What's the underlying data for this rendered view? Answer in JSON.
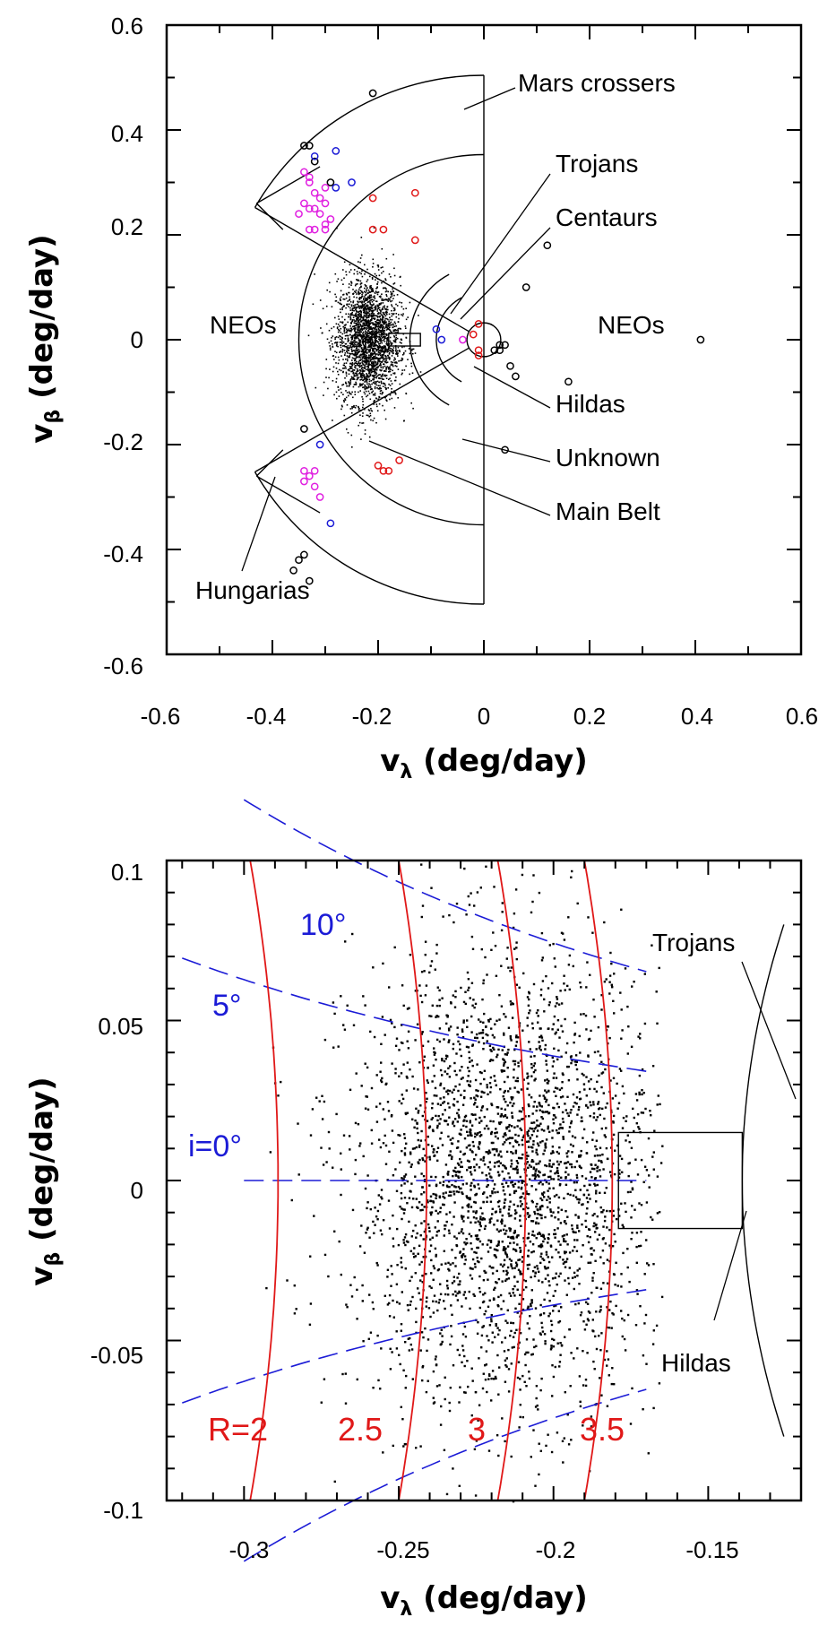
{
  "chart_data": [
    {
      "type": "scatter",
      "xlabel": {
        "main": "v",
        "sub": "λ",
        "rest": " (deg/day)"
      },
      "ylabel": {
        "main": "v",
        "sub": "β",
        "rest": " (deg/day)"
      },
      "xlim": [
        -0.6,
        0.6
      ],
      "ylim": [
        -0.6,
        0.6
      ],
      "xticks": [
        "-0.6",
        "-0.4",
        "-0.2",
        "0",
        "0.2",
        "0.4",
        "0.6"
      ],
      "yticks": [
        "0.6",
        "0.4",
        "0.2",
        "0",
        "-0.2",
        "-0.4",
        "-0.6"
      ],
      "regions": [
        "Mars crossers",
        "Trojans",
        "Centaurs",
        "NEOs",
        "NEOs",
        "Hildas",
        "Unknown",
        "Main Belt",
        "Hungarias"
      ],
      "main_belt_cloud": {
        "center": [
          -0.22,
          0.0
        ],
        "spread": [
          0.03,
          0.06
        ],
        "count": 2500,
        "color": "#000000"
      },
      "series": [
        {
          "color": "#000000",
          "points": [
            [
              -0.21,
              0.47
            ],
            [
              -0.34,
              0.37
            ],
            [
              -0.33,
              0.37
            ],
            [
              -0.32,
              0.34
            ],
            [
              -0.29,
              0.3
            ],
            [
              0.12,
              0.18
            ],
            [
              0.08,
              0.1
            ],
            [
              0.41,
              0.0
            ],
            [
              0.02,
              -0.02
            ],
            [
              0.03,
              -0.02
            ],
            [
              0.04,
              -0.01
            ],
            [
              0.03,
              -0.01
            ],
            [
              0.05,
              -0.05
            ],
            [
              0.06,
              -0.07
            ],
            [
              0.16,
              -0.08
            ],
            [
              0.04,
              -0.21
            ],
            [
              -0.34,
              -0.17
            ],
            [
              -0.35,
              -0.42
            ],
            [
              -0.34,
              -0.41
            ],
            [
              -0.36,
              -0.44
            ],
            [
              -0.33,
              -0.46
            ]
          ]
        },
        {
          "color": "#1b1bd6",
          "points": [
            [
              -0.28,
              0.36
            ],
            [
              -0.32,
              0.35
            ],
            [
              -0.25,
              0.3
            ],
            [
              -0.28,
              0.29
            ],
            [
              -0.09,
              0.02
            ],
            [
              -0.08,
              0.0
            ],
            [
              -0.31,
              -0.2
            ],
            [
              -0.29,
              -0.35
            ]
          ]
        },
        {
          "color": "#e01818",
          "points": [
            [
              -0.21,
              0.27
            ],
            [
              -0.13,
              0.28
            ],
            [
              -0.21,
              0.21
            ],
            [
              -0.19,
              0.21
            ],
            [
              -0.13,
              0.19
            ],
            [
              -0.01,
              0.03
            ],
            [
              -0.02,
              0.01
            ],
            [
              -0.01,
              -0.02
            ],
            [
              -0.01,
              -0.03
            ],
            [
              -0.2,
              -0.24
            ],
            [
              -0.19,
              -0.25
            ],
            [
              -0.18,
              -0.25
            ],
            [
              -0.16,
              -0.23
            ]
          ]
        },
        {
          "color": "#e020e0",
          "points": [
            [
              -0.34,
              0.32
            ],
            [
              -0.33,
              0.31
            ],
            [
              -0.33,
              0.3
            ],
            [
              -0.32,
              0.28
            ],
            [
              -0.3,
              0.29
            ],
            [
              -0.31,
              0.27
            ],
            [
              -0.34,
              0.26
            ],
            [
              -0.33,
              0.25
            ],
            [
              -0.32,
              0.25
            ],
            [
              -0.35,
              0.24
            ],
            [
              -0.3,
              0.26
            ],
            [
              -0.31,
              0.24
            ],
            [
              -0.29,
              0.23
            ],
            [
              -0.3,
              0.22
            ],
            [
              -0.32,
              0.21
            ],
            [
              -0.33,
              0.21
            ],
            [
              -0.3,
              0.21
            ],
            [
              -0.04,
              0.0
            ],
            [
              -0.34,
              -0.25
            ],
            [
              -0.33,
              -0.26
            ],
            [
              -0.32,
              -0.25
            ],
            [
              -0.34,
              -0.27
            ],
            [
              -0.32,
              -0.28
            ],
            [
              -0.31,
              -0.3
            ]
          ]
        }
      ]
    },
    {
      "type": "scatter",
      "xlabel": {
        "main": "v",
        "sub": "λ",
        "rest": " (deg/day)"
      },
      "ylabel": {
        "main": "v",
        "sub": "β",
        "rest": " (deg/day)"
      },
      "xlim": [
        -0.325,
        -0.12
      ],
      "ylim": [
        -0.1,
        0.1
      ],
      "xticks": [
        "-0.3",
        "-0.25",
        "-0.2",
        "-0.15"
      ],
      "yticks": [
        "0.1",
        "0.05",
        "0",
        "-0.05",
        "-0.1"
      ],
      "regions": [
        "Trojans",
        "Hildas"
      ],
      "main_belt_cloud": {
        "center": [
          -0.215,
          0.0
        ],
        "spread": [
          0.025,
          0.035
        ],
        "count": 3000,
        "color": "#000000"
      },
      "inclination_curves": [
        {
          "label": "i=0°",
          "slope": 0.0,
          "x_range": [
            -0.3,
            -0.17
          ]
        },
        {
          "label": "5°",
          "slope": 0.33,
          "x_range": [
            -0.32,
            -0.17
          ]
        },
        {
          "label": "10°",
          "slope": 0.66,
          "x_range": [
            -0.3,
            -0.17
          ]
        }
      ],
      "radius_curves": [
        {
          "label": "R=2",
          "x_at_zero": -0.289
        },
        {
          "label": "2.5",
          "x_at_zero": -0.241
        },
        {
          "label": "3",
          "x_at_zero": -0.209
        },
        {
          "label": "3.5",
          "x_at_zero": -0.181
        }
      ]
    }
  ],
  "colors": {
    "main_belt": "#000000",
    "inclination": "#1b1bd6",
    "radius": "#e01818",
    "hungarias": "#e020e0"
  }
}
